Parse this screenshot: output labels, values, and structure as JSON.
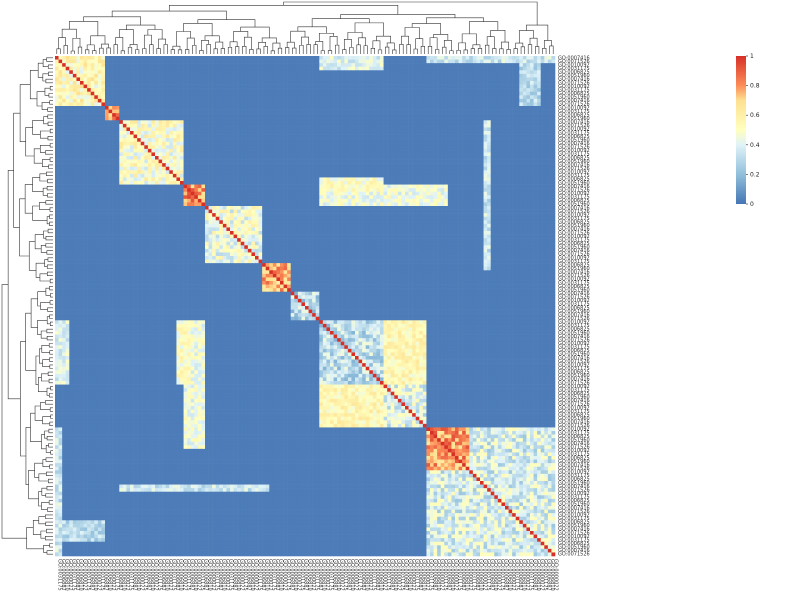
{
  "chart_data": {
    "type": "heatmap",
    "title": "",
    "xlabel": "",
    "ylabel": "",
    "row_labels_visible": [
      "GO:0007416",
      "GO:0071526",
      "GO:0010092",
      "GO:0031175",
      "GO:0006825",
      "GO:0051960"
    ],
    "col_labels_visible": [
      "GO:0031175",
      "GO:0006887",
      "GO:0006810",
      "GO:0000022"
    ],
    "color_scale": {
      "min": 0,
      "max": 1,
      "stops": [
        {
          "value": 0.0,
          "color": "#4575b4"
        },
        {
          "value": 0.2,
          "color": "#91bfdb"
        },
        {
          "value": 0.4,
          "color": "#e0f3f8"
        },
        {
          "value": 0.5,
          "color": "#ffffbf"
        },
        {
          "value": 0.7,
          "color": "#fee090"
        },
        {
          "value": 0.8,
          "color": "#fc8d59"
        },
        {
          "value": 1.0,
          "color": "#d73027"
        }
      ],
      "ticks": [
        {
          "value": 0,
          "label": "0"
        },
        {
          "value": 0.2,
          "label": "0.2"
        },
        {
          "value": 0.4,
          "label": "0.4"
        },
        {
          "value": 0.6,
          "label": "0.6"
        },
        {
          "value": 0.8,
          "label": "0.8"
        },
        {
          "value": 1,
          "label": "1"
        }
      ]
    },
    "n_terms": 140,
    "diagonal_value": 1,
    "background_value": 0.02,
    "clusters": [
      {
        "start": 0,
        "end": 14,
        "within": 0.55
      },
      {
        "start": 14,
        "end": 18,
        "within": 0.75
      },
      {
        "start": 18,
        "end": 36,
        "within": 0.5
      },
      {
        "start": 36,
        "end": 42,
        "within": 0.8
      },
      {
        "start": 42,
        "end": 58,
        "within": 0.45
      },
      {
        "start": 58,
        "end": 66,
        "within": 0.75
      },
      {
        "start": 66,
        "end": 74,
        "within": 0.3
      },
      {
        "start": 74,
        "end": 92,
        "within": 0.32
      },
      {
        "start": 92,
        "end": 104,
        "within": 0.4
      },
      {
        "start": 104,
        "end": 140,
        "within": 0.38
      },
      {
        "start": 104,
        "end": 116,
        "within": 0.78
      }
    ],
    "blocks": [
      {
        "r0": 0,
        "r1": 14,
        "c0": 130,
        "c1": 136,
        "value": 0.3
      },
      {
        "r0": 36,
        "r1": 42,
        "c0": 74,
        "c1": 110,
        "value": 0.45
      },
      {
        "r0": 74,
        "r1": 92,
        "c0": 0,
        "c1": 4,
        "value": 0.4
      },
      {
        "r0": 74,
        "r1": 92,
        "c0": 34,
        "c1": 38,
        "value": 0.5
      },
      {
        "r0": 92,
        "r1": 104,
        "c0": 74,
        "c1": 92,
        "value": 0.55
      },
      {
        "r0": 104,
        "r1": 140,
        "c0": 0,
        "c1": 2,
        "value": 0.35
      },
      {
        "r0": 120,
        "r1": 122,
        "c0": 30,
        "c1": 60,
        "value": 0.35
      },
      {
        "r0": 18,
        "r1": 36,
        "c0": 120,
        "c1": 122,
        "value": 0.35
      }
    ]
  }
}
